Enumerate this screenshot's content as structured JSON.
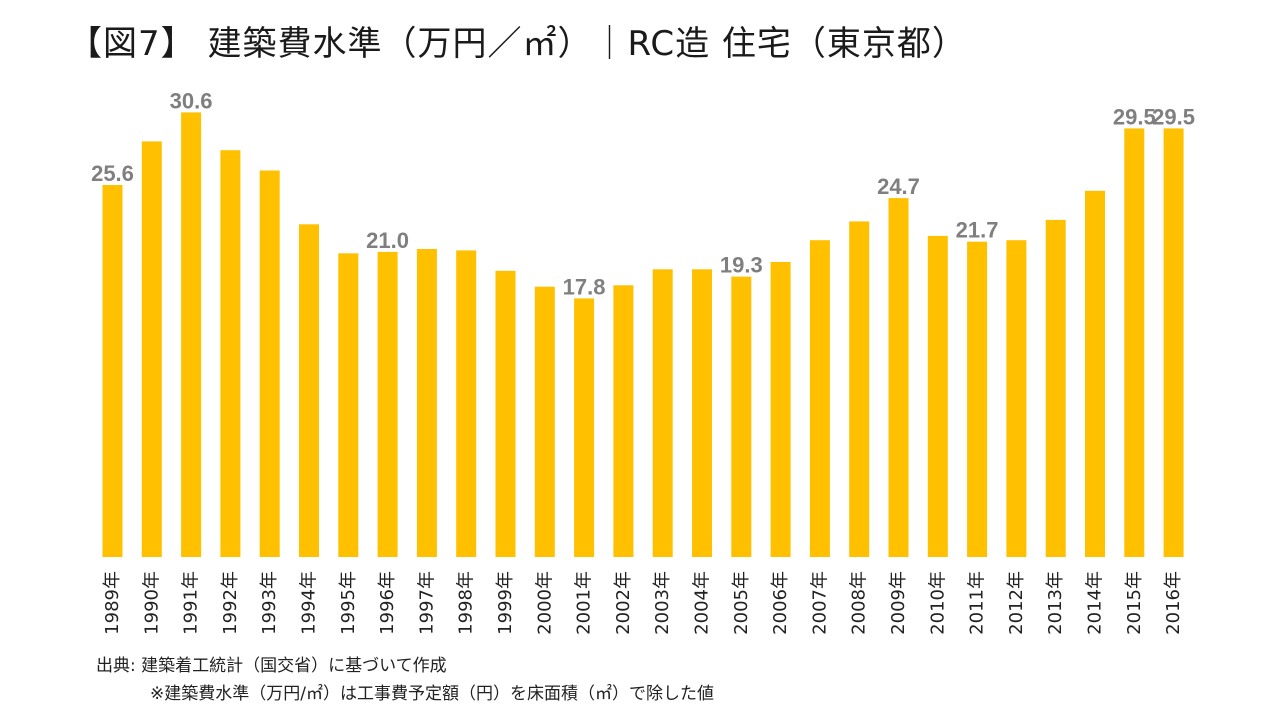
{
  "title": "【図7】 建築費水準（万円／㎡）｜RC造 住宅（東京都）",
  "footer": {
    "source": "出典: 建築着工統計（国交省）に基づいて作成",
    "note": "※建築費水準（万円/㎡）は工事費予定額（円）を床面積（㎡）で除した値"
  },
  "colors": {
    "bar": "#FFC000",
    "value_label": "#7F7F7F",
    "axis_text": "#222222"
  },
  "chart_data": {
    "type": "bar",
    "title": "【図7】 建築費水準（万円／㎡）｜RC造 住宅（東京都）",
    "xlabel": "",
    "ylabel": "",
    "ylim": [
      0,
      33
    ],
    "grid": false,
    "categories": [
      "1989年",
      "1990年",
      "1991年",
      "1992年",
      "1993年",
      "1994年",
      "1995年",
      "1996年",
      "1997年",
      "1998年",
      "1999年",
      "2000年",
      "2001年",
      "2002年",
      "2003年",
      "2004年",
      "2005年",
      "2006年",
      "2007年",
      "2008年",
      "2009年",
      "2010年",
      "2011年",
      "2012年",
      "2013年",
      "2014年",
      "2015年",
      "2016年"
    ],
    "values": [
      25.6,
      28.6,
      30.6,
      28.0,
      26.6,
      22.9,
      20.9,
      21.0,
      21.2,
      21.1,
      19.7,
      18.6,
      17.8,
      18.7,
      19.8,
      19.8,
      19.3,
      20.3,
      21.8,
      23.1,
      24.7,
      22.1,
      21.7,
      21.8,
      23.2,
      25.2,
      29.5,
      29.5
    ],
    "data_labels": [
      {
        "category": "1989年",
        "text": "25.6"
      },
      {
        "category": "1991年",
        "text": "30.6"
      },
      {
        "category": "1996年",
        "text": "21.0"
      },
      {
        "category": "2001年",
        "text": "17.8"
      },
      {
        "category": "2005年",
        "text": "19.3"
      },
      {
        "category": "2009年",
        "text": "24.7"
      },
      {
        "category": "2011年",
        "text": "21.7"
      },
      {
        "category": "2015年",
        "text": "29.5"
      },
      {
        "category": "2016年",
        "text": "29.5"
      }
    ]
  }
}
